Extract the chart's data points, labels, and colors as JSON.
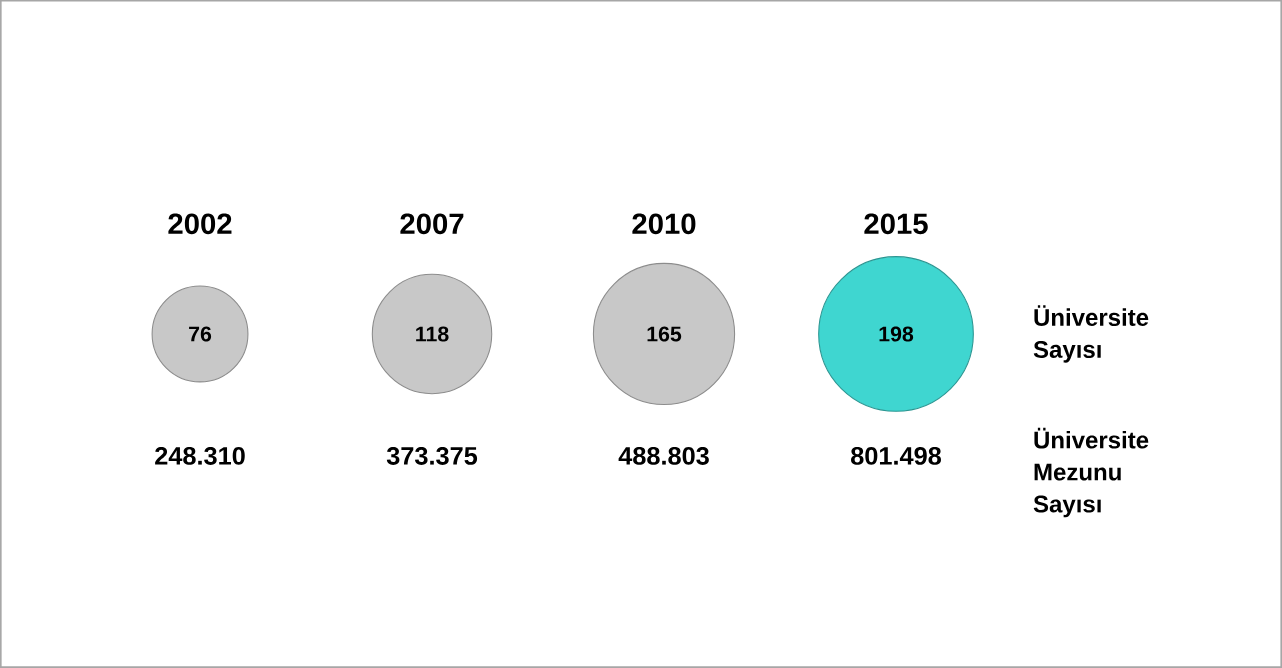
{
  "chart_data": {
    "type": "other",
    "categories": [
      "2002",
      "2007",
      "2010",
      "2015"
    ],
    "data_labels": true,
    "series": [
      {
        "name": "Üniversite Sayısı",
        "values": [
          76,
          118,
          165,
          198
        ],
        "colors": [
          "#c8c8c8",
          "#c8c8c8",
          "#c8c8c8",
          "#3fd6d0"
        ]
      },
      {
        "name": "Üniversite Mezunu Sayısı",
        "values": [
          248310,
          373375,
          488803,
          801498
        ],
        "value_labels": [
          "248.310",
          "373.375",
          "488.803",
          "801.498"
        ]
      }
    ]
  }
}
